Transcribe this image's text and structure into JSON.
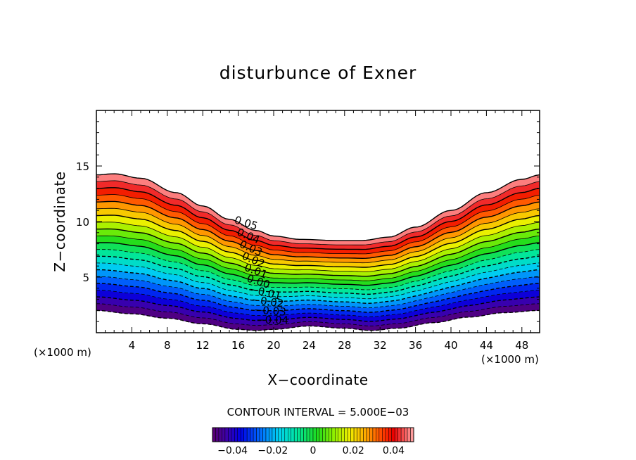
{
  "chart_data": {
    "type": "contour",
    "title": "disturbunce of Exner",
    "xlabel": "X−coordinate",
    "ylabel": "Z−coordinate",
    "x_unit_left": "(×1000 m)",
    "x_unit_right": "(×1000 m)",
    "xlim": [
      0,
      50
    ],
    "ylim": [
      0,
      20
    ],
    "x_ticks": [
      4,
      8,
      12,
      16,
      20,
      24,
      28,
      32,
      36,
      40,
      44,
      48
    ],
    "x_tick_labels": [
      "4",
      "8",
      "12",
      "16",
      "20",
      "24",
      "28",
      "32",
      "36",
      "40",
      "44",
      "48"
    ],
    "y_ticks": [
      5,
      10,
      15
    ],
    "y_tick_labels": [
      "5",
      "10",
      "15"
    ],
    "contour_interval_text": "CONTOUR INTERVAL = 5.000E−03",
    "contour_interval": 0.005,
    "value_range": [
      -0.05,
      0.05
    ],
    "contour_labels": [
      "0.05",
      "0.04",
      "0.03",
      "0.02",
      "0.01",
      "0.00",
      "−0.01",
      "−0.02",
      "−0.03",
      "−0.04"
    ],
    "contour_label_values": [
      0.05,
      0.04,
      0.03,
      0.02,
      0.01,
      0.0,
      -0.01,
      -0.02,
      -0.03,
      -0.04
    ],
    "colorbar_tick_labels": [
      "−0.04",
      "−0.02",
      "0",
      "0.02",
      "0.04"
    ],
    "colorbar_tick_values": [
      -0.04,
      -0.02,
      0,
      0.02,
      0.04
    ],
    "negative_contours": "dashed",
    "colormap": "rainbow (purple = negative, red = positive)",
    "top_boundary": {
      "x": [
        0,
        2,
        5,
        9,
        12,
        15,
        18,
        20,
        23,
        27,
        30,
        33,
        36,
        40,
        44,
        48,
        50
      ],
      "z": [
        14.2,
        14.3,
        13.9,
        12.6,
        11.4,
        10.2,
        9.2,
        8.7,
        8.4,
        8.3,
        8.3,
        8.6,
        9.5,
        11.0,
        12.6,
        13.8,
        14.2
      ]
    },
    "bottom_boundary": {
      "x": [
        0,
        4,
        8,
        12,
        16,
        18,
        20,
        24,
        28,
        31,
        34,
        38,
        42,
        46,
        50
      ],
      "z": [
        2.0,
        1.7,
        1.3,
        0.8,
        0.3,
        0.2,
        0.3,
        0.6,
        0.4,
        0.2,
        0.4,
        0.9,
        1.4,
        1.8,
        2.0
      ]
    }
  }
}
